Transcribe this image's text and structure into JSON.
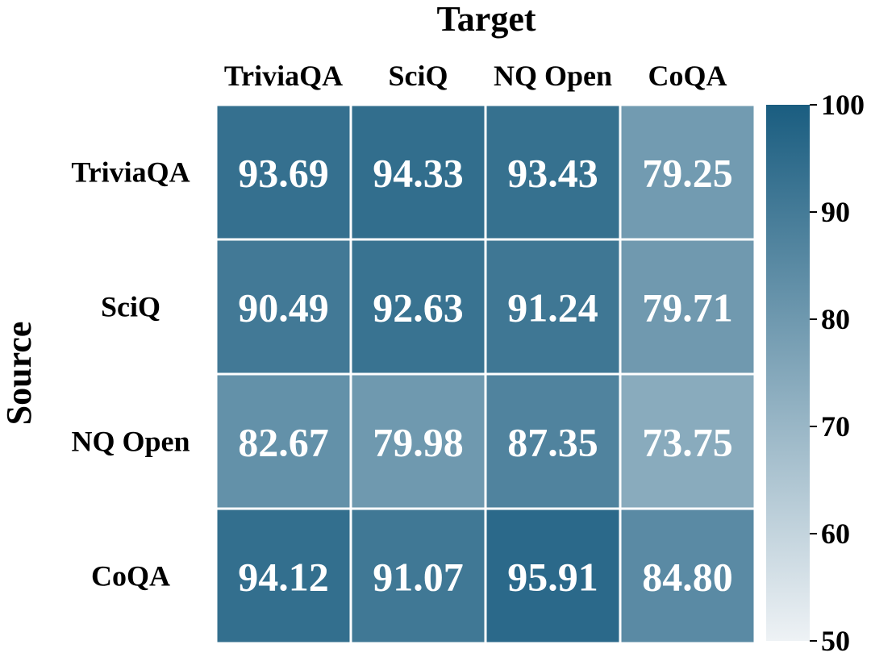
{
  "chart_data": {
    "type": "heatmap",
    "xlabel": "Target",
    "ylabel": "Source",
    "x_categories": [
      "TriviaQA",
      "SciQ",
      "NQ Open",
      "CoQA"
    ],
    "y_categories": [
      "TriviaQA",
      "SciQ",
      "NQ Open",
      "CoQA"
    ],
    "values": [
      [
        93.69,
        94.33,
        93.43,
        79.25
      ],
      [
        90.49,
        92.63,
        91.24,
        79.71
      ],
      [
        82.67,
        79.98,
        87.35,
        73.75
      ],
      [
        94.12,
        91.07,
        95.91,
        84.8
      ]
    ],
    "value_labels": [
      [
        "93.69",
        "94.33",
        "93.43",
        "79.25"
      ],
      [
        "90.49",
        "92.63",
        "91.24",
        "79.71"
      ],
      [
        "82.67",
        "79.98",
        "87.35",
        "73.75"
      ],
      [
        "94.12",
        "91.07",
        "95.91",
        "84.80"
      ]
    ],
    "colorbar": {
      "min": 50,
      "max": 100,
      "ticks": [
        50,
        60,
        70,
        80,
        90,
        100
      ],
      "color_low": "#eef2f5",
      "color_high": "#1a5d80"
    },
    "x_axis_position": "top"
  }
}
